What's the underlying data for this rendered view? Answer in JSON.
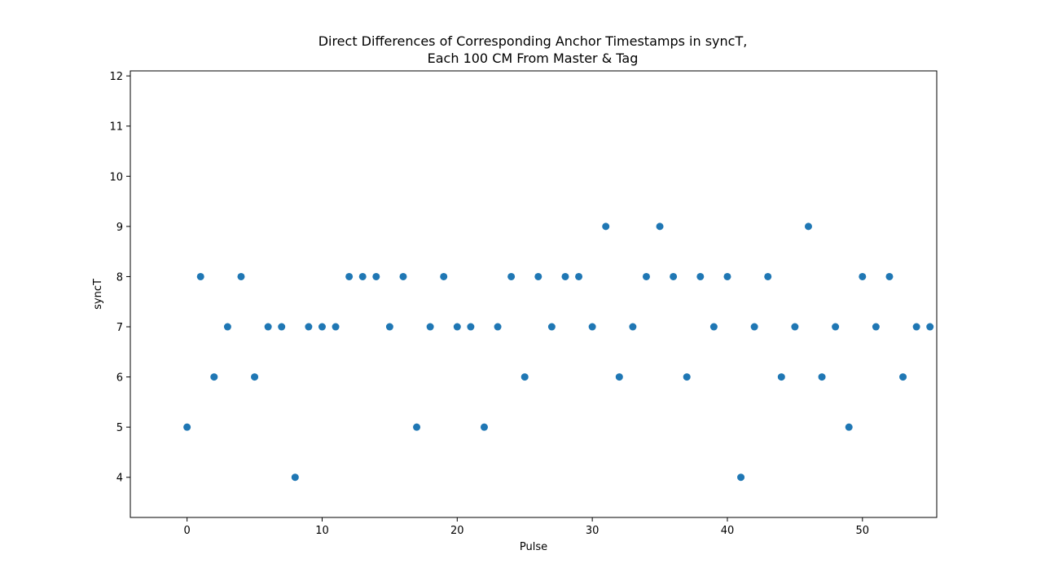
{
  "chart_data": {
    "type": "scatter",
    "title": [
      "Direct Differences of Corresponding Anchor Timestamps in syncT,",
      "Each 100 CM From Master & Tag"
    ],
    "xlabel": "Pulse",
    "ylabel": "syncT",
    "xlim": [
      -4.2,
      55.5
    ],
    "ylim": [
      3.2,
      12.1
    ],
    "xticks": [
      0,
      10,
      20,
      30,
      40,
      50
    ],
    "yticks": [
      4,
      5,
      6,
      7,
      8,
      9,
      10,
      11,
      12
    ],
    "grid": false,
    "legend": "none",
    "color": "#1f77b4",
    "x": [
      0,
      1,
      2,
      3,
      4,
      5,
      6,
      7,
      8,
      9,
      10,
      11,
      12,
      13,
      14,
      15,
      16,
      17,
      18,
      19,
      20,
      21,
      22,
      23,
      24,
      25,
      26,
      27,
      28,
      29,
      30,
      31,
      32,
      33,
      34,
      35,
      36,
      37,
      38,
      39,
      40,
      41,
      42,
      43,
      44,
      45,
      46,
      47,
      48,
      49,
      50,
      51,
      52,
      53,
      54,
      55
    ],
    "y": [
      5,
      8,
      6,
      7,
      8,
      6,
      7,
      7,
      4,
      7,
      7,
      7,
      8,
      8,
      8,
      7,
      8,
      5,
      7,
      8,
      7,
      7,
      5,
      7,
      8,
      6,
      8,
      7,
      8,
      8,
      7,
      9,
      6,
      7,
      8,
      9,
      8,
      6,
      8,
      7,
      8,
      4,
      7,
      8,
      6,
      7,
      9,
      6,
      7,
      5,
      8,
      7,
      8,
      6,
      7,
      7
    ]
  }
}
